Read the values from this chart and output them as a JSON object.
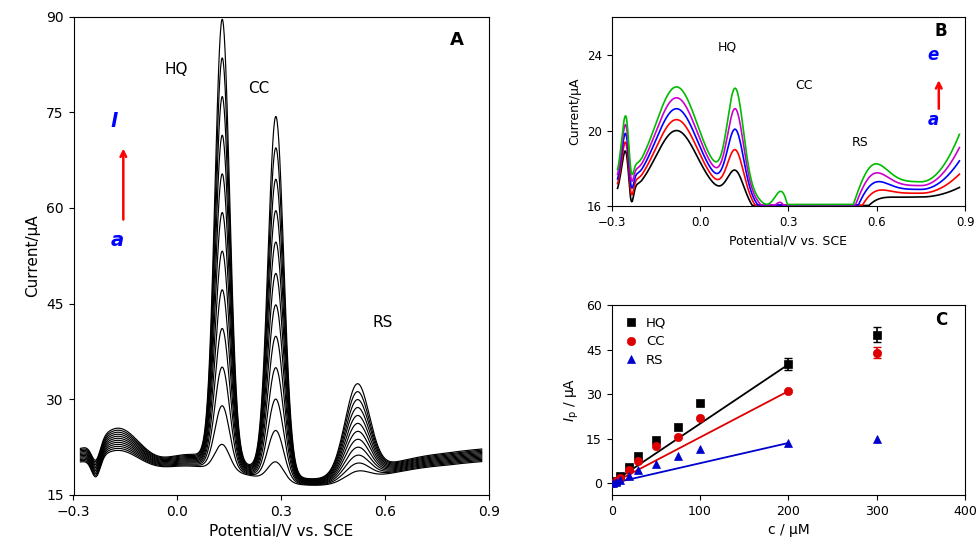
{
  "panel_A": {
    "title": "A",
    "xlabel": "Potential/V vs. SCE",
    "ylabel": "Current/μA",
    "xlim": [
      -0.3,
      0.9
    ],
    "ylim": [
      15,
      90
    ],
    "yticks": [
      15,
      30,
      45,
      60,
      75,
      90
    ],
    "xticks": [
      -0.3,
      0.0,
      0.3,
      0.6,
      0.9
    ],
    "label_l": "l",
    "label_a": "a",
    "hq_label": "HQ",
    "cc_label": "CC",
    "rs_label": "RS",
    "n_curves": 12,
    "hq_peak_x": 0.13,
    "cc_peak_x": 0.28,
    "rs_peak_x": 0.52
  },
  "panel_B": {
    "title": "B",
    "xlabel": "Potential/V vs. SCE",
    "ylabel": "Current/μA",
    "xlim": [
      -0.3,
      0.9
    ],
    "ylim": [
      16,
      26
    ],
    "yticks": [
      16,
      20,
      24
    ],
    "xticks": [
      -0.3,
      0.0,
      0.3,
      0.6,
      0.9
    ],
    "label_e": "e",
    "label_a": "a",
    "hq_label": "HQ",
    "cc_label": "CC",
    "rs_label": "RS",
    "colors": [
      "#000000",
      "#ff0000",
      "#0000ff",
      "#cc00cc",
      "#00bb00"
    ],
    "n_curves": 5
  },
  "panel_C": {
    "title": "C",
    "xlabel": "c / μM",
    "ylabel": "$I_p$ / μA",
    "xlim": [
      0,
      400
    ],
    "ylim": [
      -4,
      60
    ],
    "yticks": [
      0,
      15,
      30,
      45,
      60
    ],
    "xticks": [
      0,
      100,
      200,
      300,
      400
    ],
    "hq_x": [
      2,
      5,
      10,
      20,
      30,
      50,
      75,
      100,
      200,
      300
    ],
    "hq_y": [
      0.2,
      0.8,
      2.5,
      5.5,
      9.0,
      14.5,
      19.0,
      27.0,
      40.0,
      50.0
    ],
    "cc_x": [
      2,
      5,
      10,
      20,
      30,
      50,
      75,
      100,
      200,
      300
    ],
    "cc_y": [
      0.1,
      0.5,
      1.8,
      4.5,
      7.5,
      12.5,
      15.5,
      22.0,
      31.0,
      44.0
    ],
    "rs_x": [
      2,
      5,
      10,
      20,
      30,
      50,
      75,
      100,
      200,
      300
    ],
    "rs_y": [
      0.05,
      0.3,
      1.0,
      2.5,
      4.5,
      6.5,
      9.0,
      11.5,
      13.5,
      15.0
    ],
    "hq_line_x": [
      -5,
      200
    ],
    "hq_line_y": [
      -1.0,
      40.0
    ],
    "cc_line_x": [
      -5,
      200
    ],
    "cc_line_y": [
      -1.0,
      31.0
    ],
    "rs_line_x": [
      -5,
      200
    ],
    "rs_line_y": [
      -0.5,
      13.5
    ],
    "hq_color": "#000000",
    "cc_color": "#dd0000",
    "rs_color": "#0000cc"
  }
}
